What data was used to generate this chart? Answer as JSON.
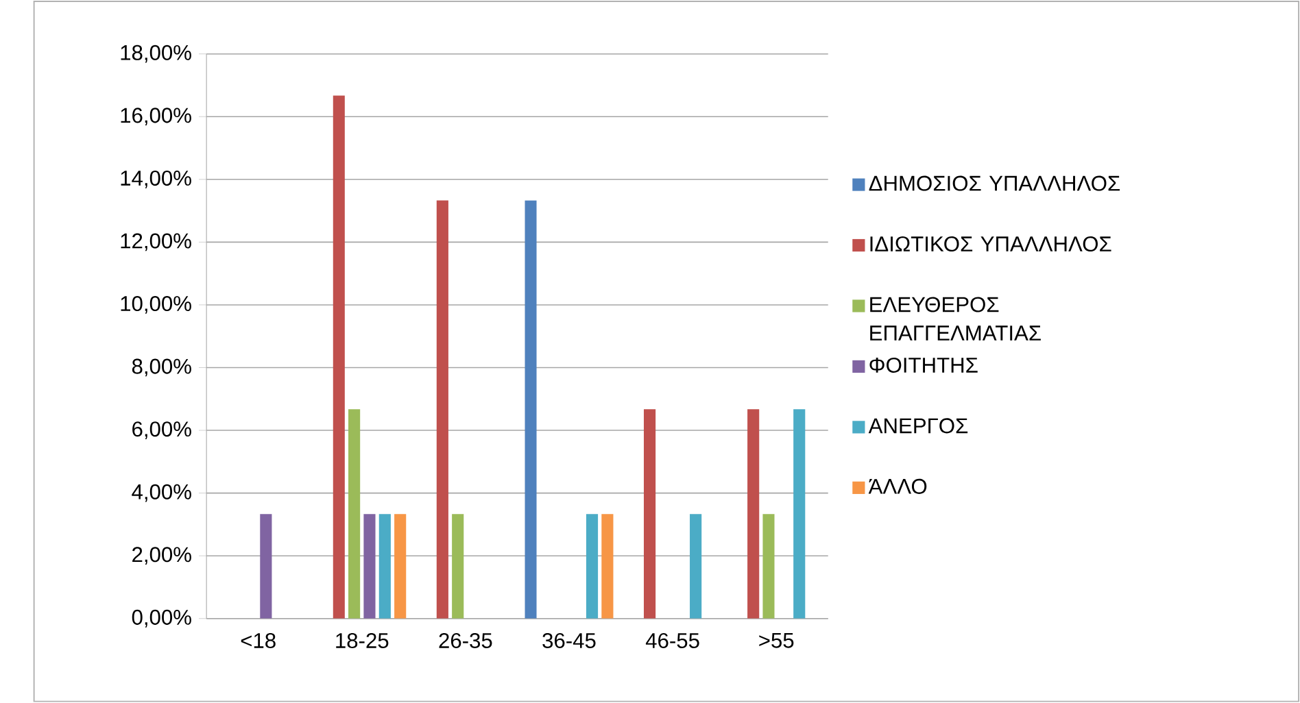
{
  "chart_data": {
    "type": "bar",
    "categories": [
      "<18",
      "18-25",
      "26-35",
      "36-45",
      "46-55",
      ">55"
    ],
    "series": [
      {
        "name": "ΔΗΜΟΣΙΟΣ ΥΠΑΛΛΗΛΟΣ",
        "color": "#4f81bd",
        "values": [
          null,
          null,
          null,
          13.33,
          null,
          null
        ]
      },
      {
        "name": "ΙΔΙΩΤΙΚΟΣ ΥΠΑΛΛΗΛΟΣ",
        "color": "#c0504d",
        "values": [
          null,
          16.67,
          13.33,
          null,
          6.67,
          6.67
        ]
      },
      {
        "name": "ΕΛΕΥΘΕΡΟΣ ΕΠΑΓΓΕΛΜΑΤΙΑΣ",
        "color": "#9bbb59",
        "values": [
          null,
          6.67,
          3.33,
          null,
          null,
          3.33
        ]
      },
      {
        "name": "ΦΟΙΤΗΤΗΣ",
        "color": "#8064a2",
        "values": [
          3.33,
          3.33,
          null,
          null,
          null,
          null
        ]
      },
      {
        "name": "ΑΝΕΡΓΟΣ",
        "color": "#4bacc6",
        "values": [
          null,
          3.33,
          null,
          3.33,
          3.33,
          6.67
        ]
      },
      {
        "name": "ΆΛΛΟ",
        "color": "#f79646",
        "values": [
          null,
          3.33,
          null,
          3.33,
          null,
          null
        ]
      }
    ],
    "ylim": [
      0,
      18
    ],
    "yticks": [
      {
        "value": 0,
        "label": "0,00%"
      },
      {
        "value": 2,
        "label": "2,00%"
      },
      {
        "value": 4,
        "label": "4,00%"
      },
      {
        "value": 6,
        "label": "6,00%"
      },
      {
        "value": 8,
        "label": "8,00%"
      },
      {
        "value": 10,
        "label": "10,00%"
      },
      {
        "value": 12,
        "label": "12,00%"
      },
      {
        "value": 14,
        "label": "14,00%"
      },
      {
        "value": 16,
        "label": "16,00%"
      },
      {
        "value": 18,
        "label": "18,00%"
      }
    ],
    "grid": "y",
    "legend": "right"
  }
}
